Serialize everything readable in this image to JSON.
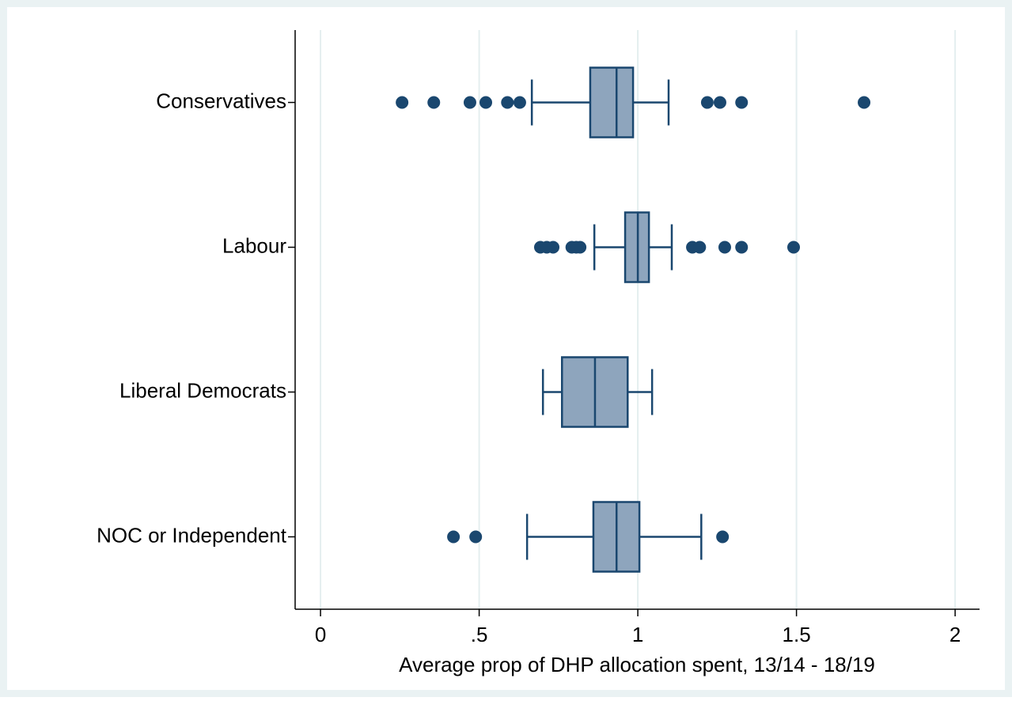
{
  "chart_data": {
    "type": "box",
    "orientation": "horizontal",
    "xlabel": "Average prop of DHP allocation spent, 13/14 - 18/19",
    "categories": [
      "Conservatives",
      "Labour",
      "Liberal Democrats",
      "NOC or Independent"
    ],
    "boxes": [
      {
        "whisker_low": 0.666,
        "q1": 0.85,
        "median": 0.933,
        "q3": 0.985,
        "whisker_high": 1.097,
        "outliers": [
          0.257,
          0.357,
          0.471,
          0.521,
          0.589,
          0.628,
          1.219,
          1.259,
          1.327,
          1.713
        ]
      },
      {
        "whisker_low": 0.863,
        "q1": 0.96,
        "median": 1.0,
        "q3": 1.035,
        "whisker_high": 1.107,
        "outliers": [
          0.693,
          0.713,
          0.733,
          0.792,
          0.806,
          0.818,
          1.172,
          1.195,
          1.274,
          1.327,
          1.491
        ]
      },
      {
        "whisker_low": 0.701,
        "q1": 0.761,
        "median": 0.865,
        "q3": 0.968,
        "whisker_high": 1.045,
        "outliers": []
      },
      {
        "whisker_low": 0.651,
        "q1": 0.86,
        "median": 0.933,
        "q3": 1.005,
        "whisker_high": 1.2,
        "outliers": [
          0.419,
          0.489,
          1.267
        ]
      }
    ],
    "box_color": "#8ea5bd",
    "line_color": "#1a476f",
    "xlim": [
      -0.08,
      2.077
    ],
    "xticks": [
      0,
      {
        "value": 0.5,
        "label": ".5"
      },
      1,
      1.5,
      2
    ],
    "grid": true
  }
}
